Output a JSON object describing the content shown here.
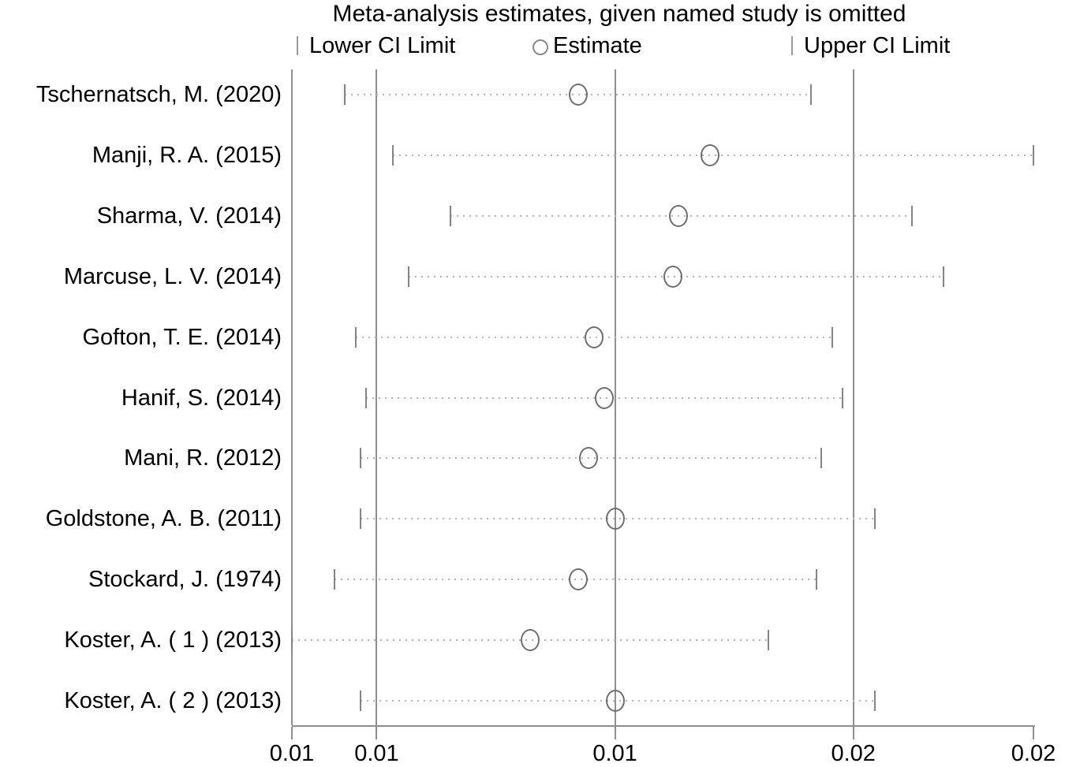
{
  "title": "Meta-analysis estimates, given named study is omitted",
  "legend": {
    "lower_label": "Lower CI Limit",
    "estimate_label": "Estimate",
    "upper_label": "Upper CI Limit"
  },
  "colors": {
    "axis_line": "#8f8f8f",
    "ci_dotted_line": "#b3b3b3",
    "whisker": "#848484",
    "estimate_marker": "#6e6e6e",
    "text": "#000000"
  },
  "chart_data": {
    "type": "scatter",
    "variant": "meta-analysis leave-one-out influence (forest) plot",
    "title": "Meta-analysis estimates, given named study is omitted",
    "xlabel": "",
    "ylabel": "",
    "xlim": [
      0.0059,
      0.0199
    ],
    "grid": "vertical reference lines at pooled lower CI, estimate, upper CI",
    "legend_position": "top",
    "x_ticks": [
      {
        "value": 0.0059,
        "label": "0.01"
      },
      {
        "value": 0.0075,
        "label": "0.01"
      },
      {
        "value": 0.012,
        "label": "0.01"
      },
      {
        "value": 0.0165,
        "label": "0.02"
      },
      {
        "value": 0.0199,
        "label": "0.02"
      }
    ],
    "reference_lines": {
      "lower_ci": 0.0075,
      "estimate": 0.012,
      "upper_ci": 0.0165
    },
    "studies": [
      {
        "label": "Tschernatsch, M. (2020)",
        "lower": 0.0069,
        "estimate": 0.0113,
        "upper": 0.0157
      },
      {
        "label": "Manji, R. A. (2015)",
        "lower": 0.0078,
        "estimate": 0.0138,
        "upper": 0.0199
      },
      {
        "label": "Sharma, V. (2014)",
        "lower": 0.0089,
        "estimate": 0.0132,
        "upper": 0.0176
      },
      {
        "label": "Marcuse, L. V. (2014)",
        "lower": 0.0081,
        "estimate": 0.0131,
        "upper": 0.0182
      },
      {
        "label": "Gofton, T. E. (2014)",
        "lower": 0.0071,
        "estimate": 0.0116,
        "upper": 0.0161
      },
      {
        "label": "Hanif, S. (2014)",
        "lower": 0.0073,
        "estimate": 0.0118,
        "upper": 0.0163
      },
      {
        "label": "Mani, R. (2012)",
        "lower": 0.0072,
        "estimate": 0.0115,
        "upper": 0.0159
      },
      {
        "label": "Goldstone, A. B. (2011)",
        "lower": 0.0072,
        "estimate": 0.012,
        "upper": 0.0169
      },
      {
        "label": "Stockard, J. (1974)",
        "lower": 0.0067,
        "estimate": 0.0113,
        "upper": 0.0158
      },
      {
        "label": "Koster, A. ( 1 )  (2013)",
        "lower": 0.0059,
        "estimate": 0.0104,
        "upper": 0.0149
      },
      {
        "label": "Koster, A. ( 2 )  (2013)",
        "lower": 0.0072,
        "estimate": 0.012,
        "upper": 0.0169
      }
    ]
  }
}
